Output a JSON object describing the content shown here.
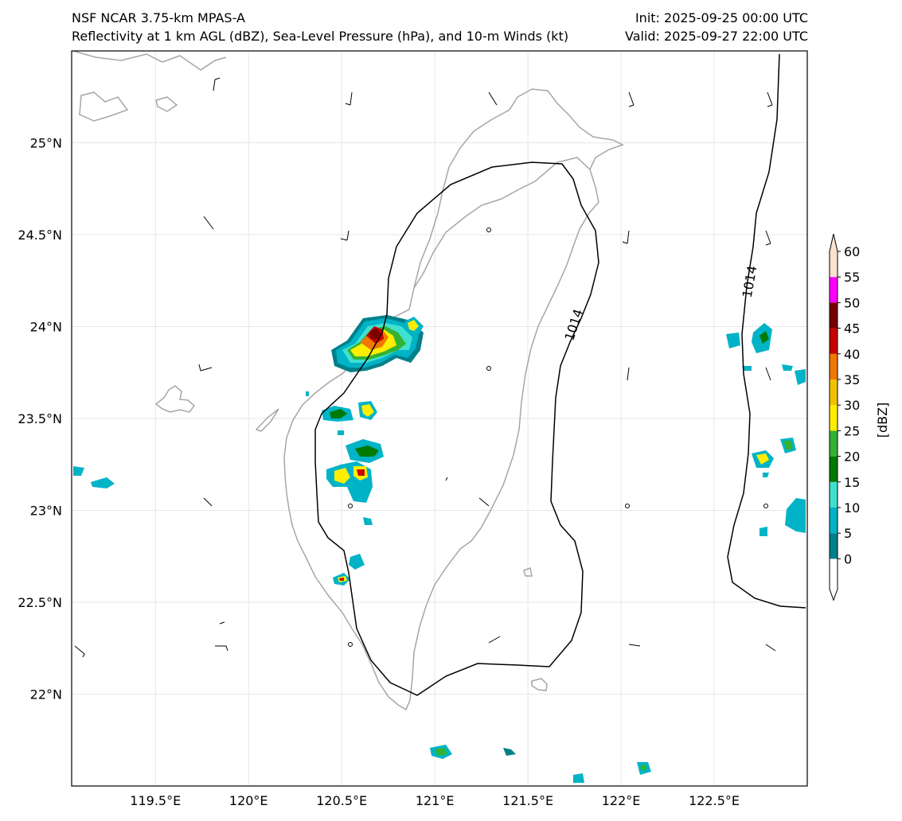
{
  "header": {
    "title_left": "NSF NCAR 3.75-km MPAS-A",
    "subtitle_left": "Reflectivity at 1 km AGL (dBZ), Sea-Level Pressure (hPa), and 10-m Winds (kt)",
    "init": "Init: 2025-09-25 00:00 UTC",
    "valid": "Valid: 2025-09-27 22:00 UTC"
  },
  "map": {
    "lon_range": [
      119.05,
      123.0
    ],
    "lat_range": [
      21.5,
      25.5
    ],
    "lon_ticks": [
      {
        "v": 119.5,
        "label": "119.5°E"
      },
      {
        "v": 120.0,
        "label": "120°E"
      },
      {
        "v": 120.5,
        "label": "120.5°E"
      },
      {
        "v": 121.0,
        "label": "121°E"
      },
      {
        "v": 121.5,
        "label": "121.5°E"
      },
      {
        "v": 122.0,
        "label": "122°E"
      },
      {
        "v": 122.5,
        "label": "122.5°E"
      }
    ],
    "lat_ticks": [
      {
        "v": 25.0,
        "label": "25°N"
      },
      {
        "v": 24.5,
        "label": "24.5°N"
      },
      {
        "v": 24.0,
        "label": "24°N"
      },
      {
        "v": 23.5,
        "label": "23.5°N"
      },
      {
        "v": 23.0,
        "label": "23°N"
      },
      {
        "v": 22.5,
        "label": "22.5°N"
      },
      {
        "v": 22.0,
        "label": "22°N"
      }
    ],
    "isobar_labels": [
      "1014",
      "1014"
    ],
    "coast_color": "#a6a6a6",
    "grid_color": "#e6e6e6"
  },
  "colorbar": {
    "label": "[dBZ]",
    "ticks": [
      "0",
      "5",
      "10",
      "15",
      "20",
      "25",
      "30",
      "35",
      "40",
      "45",
      "50",
      "55",
      "60"
    ],
    "colors": [
      "#00808a",
      "#00b3c7",
      "#40e0d0",
      "#007a00",
      "#33b233",
      "#ffee00",
      "#f2c200",
      "#f07800",
      "#c80000",
      "#7a0000",
      "#ff00ff",
      "#fde0d0"
    ]
  }
}
